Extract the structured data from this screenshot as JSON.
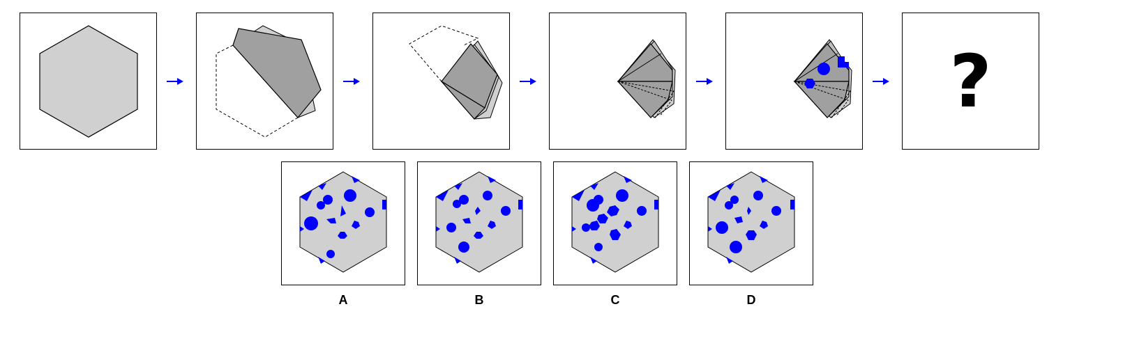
{
  "puzzle": {
    "colors": {
      "paper": "#d0d0d0",
      "fold": "#a0a0a0",
      "cut": "#0000ff",
      "arrow": "#0000ff",
      "outline": "#000000"
    },
    "question_mark": "?",
    "options": [
      {
        "label": "A"
      },
      {
        "label": "B"
      },
      {
        "label": "C"
      },
      {
        "label": "D"
      }
    ]
  }
}
